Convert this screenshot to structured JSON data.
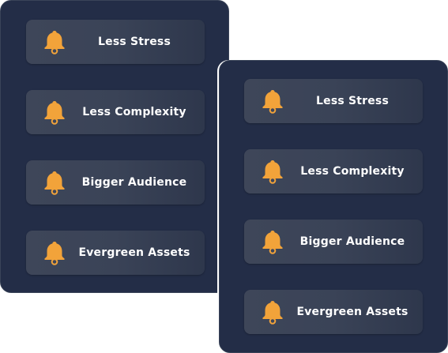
{
  "colors": {
    "panel_bg": "#232d47",
    "card_bg": "#3a4357",
    "accent": "#f2a33a",
    "text": "#ffffff"
  },
  "left_panel": {
    "items": [
      {
        "label": "Less Stress",
        "icon": "bell-icon"
      },
      {
        "label": "Less Complexity",
        "icon": "bell-icon"
      },
      {
        "label": "Bigger Audience",
        "icon": "bell-icon"
      },
      {
        "label": "Evergreen Assets",
        "icon": "bell-icon"
      }
    ]
  },
  "right_panel": {
    "items": [
      {
        "label": "Less Stress",
        "icon": "bell-icon"
      },
      {
        "label": "Less Complexity",
        "icon": "bell-icon"
      },
      {
        "label": "Bigger Audience",
        "icon": "bell-icon"
      },
      {
        "label": "Evergreen Assets",
        "icon": "bell-icon"
      }
    ]
  }
}
